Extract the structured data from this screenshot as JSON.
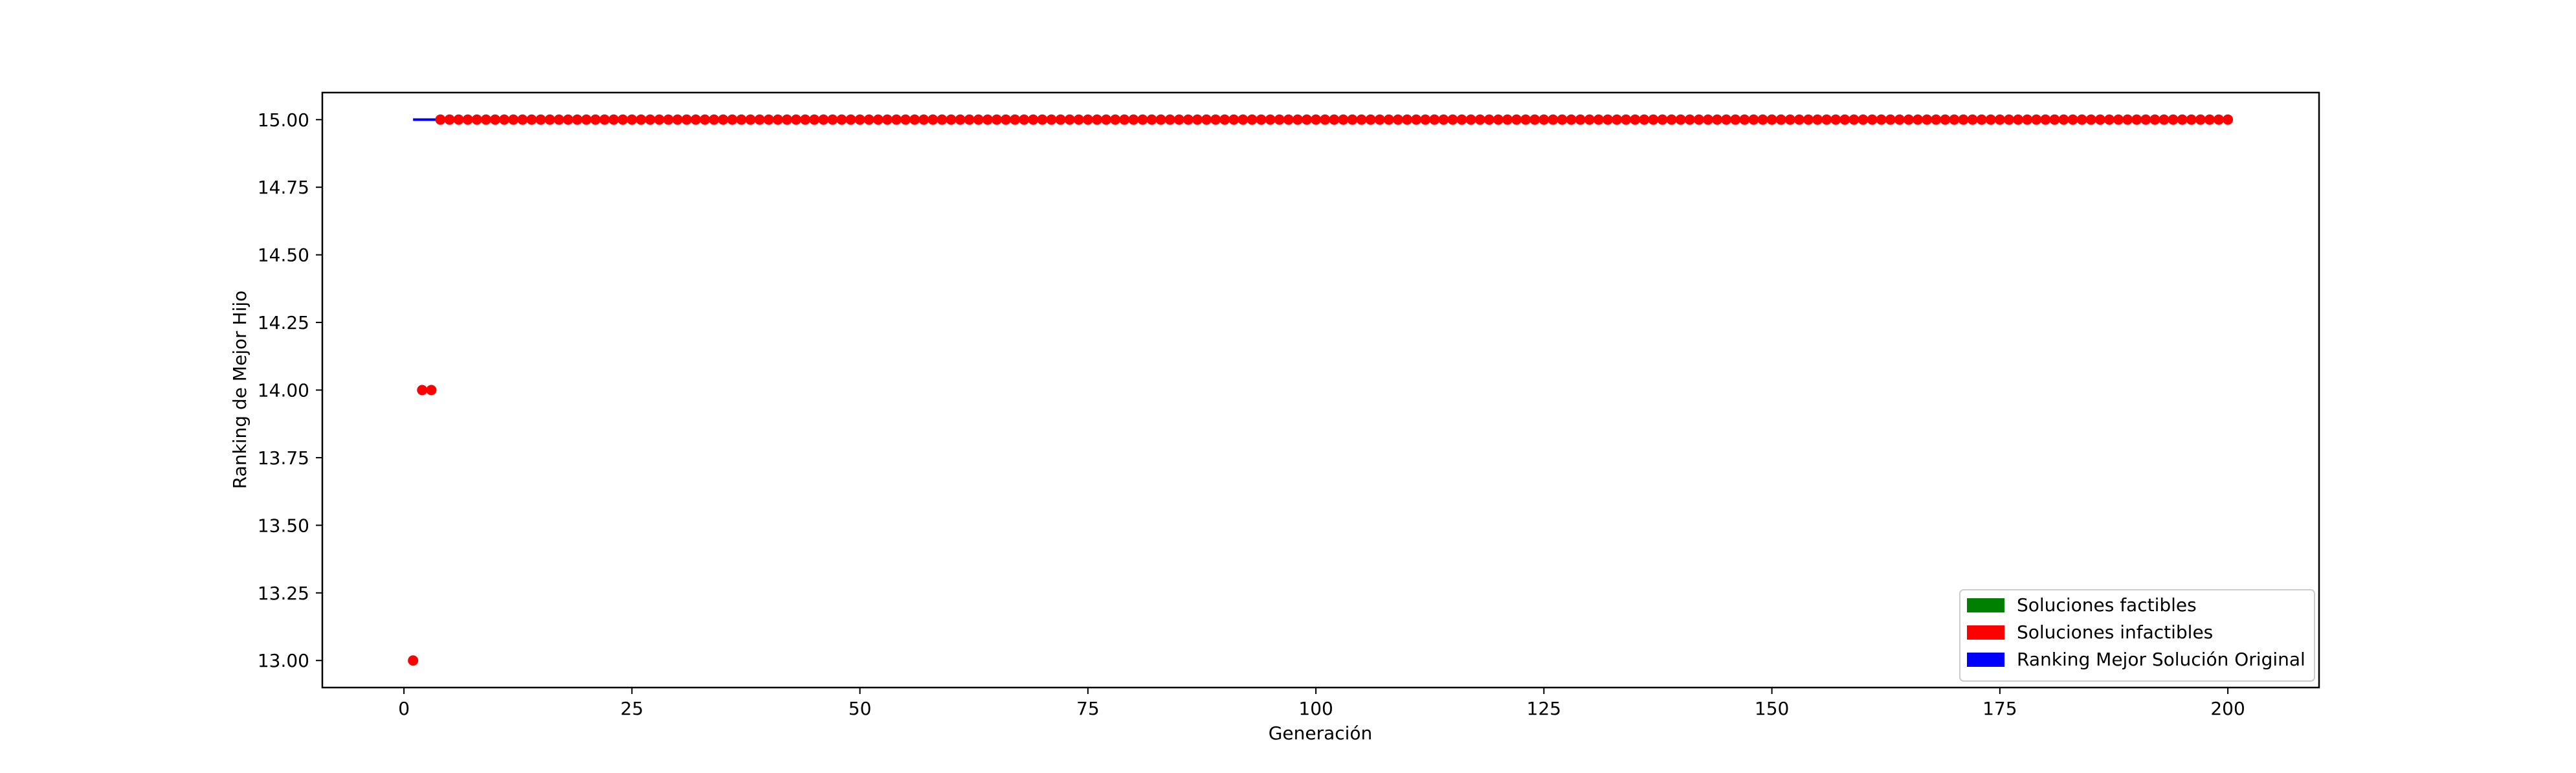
{
  "chart_data": {
    "type": "scatter",
    "title": "",
    "xlabel": "Generación",
    "ylabel": "Ranking de Mejor Hijo",
    "xlim": [
      -8.95,
      210.0
    ],
    "ylim": [
      12.9,
      15.1
    ],
    "xticks": [
      0,
      25,
      50,
      75,
      100,
      125,
      150,
      175,
      200
    ],
    "xtick_labels": [
      "0",
      "25",
      "50",
      "75",
      "100",
      "125",
      "150",
      "175",
      "200"
    ],
    "yticks": [
      13.0,
      13.25,
      13.5,
      13.75,
      14.0,
      14.25,
      14.5,
      14.75,
      15.0
    ],
    "ytick_labels": [
      "13.00",
      "13.25",
      "13.50",
      "13.75",
      "14.00",
      "14.25",
      "14.50",
      "14.75",
      "15.00"
    ],
    "grid": false,
    "legend_position": "lower right",
    "series": [
      {
        "name": "Soluciones infactibles",
        "kind": "points",
        "color": "#ff0000",
        "points": [
          [
            1,
            13.0
          ],
          [
            2,
            14.0
          ],
          [
            3,
            14.0
          ]
        ],
        "constant_run": {
          "from": 4,
          "to": 200,
          "step": 1,
          "y": 15.0
        }
      },
      {
        "name": "Ranking Mejor Solución Original",
        "kind": "line",
        "color": "#0000ff",
        "x_range": [
          1,
          200
        ],
        "y": 15.0
      },
      {
        "name": "Soluciones factibles",
        "kind": "points",
        "color": "#008000",
        "points": []
      }
    ],
    "legend": [
      {
        "label": "Soluciones factibles",
        "color": "#008000"
      },
      {
        "label": "Soluciones infactibles",
        "color": "#ff0000"
      },
      {
        "label": "Ranking Mejor Solución Original",
        "color": "#0000ff"
      }
    ]
  }
}
